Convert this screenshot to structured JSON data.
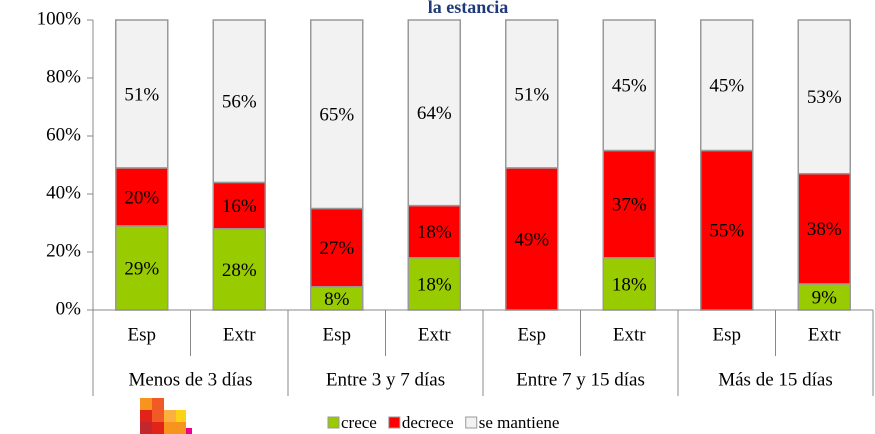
{
  "chart_data": {
    "type": "stacked_bar",
    "title": "la estancia",
    "groups": [
      "Menos de 3 días",
      "Entre 3 y 7 días",
      "Entre 7 y 15 días",
      "Más de 15 días"
    ],
    "categories": [
      "Esp",
      "Extr",
      "Esp",
      "Extr",
      "Esp",
      "Extr",
      "Esp",
      "Extr"
    ],
    "series": [
      {
        "name": "crece",
        "color": "#99cc00",
        "values": [
          29,
          28,
          8,
          18,
          0,
          18,
          0,
          9
        ],
        "value_labels": [
          "29%",
          "28%",
          "8%",
          "18%",
          null,
          "18%",
          null,
          "9%"
        ]
      },
      {
        "name": "decrece",
        "color": "#ff0000",
        "values": [
          20,
          16,
          27,
          18,
          49,
          37,
          55,
          38
        ],
        "value_labels": [
          "20%",
          "16%",
          "27%",
          "18%",
          "49%",
          "37%",
          "55%",
          "38%"
        ]
      },
      {
        "name": "se mantiene",
        "color": "#f2f2f2",
        "values": [
          51,
          56,
          65,
          64,
          51,
          45,
          45,
          53
        ],
        "value_labels": [
          "51%",
          "56%",
          "65%",
          "64%",
          "51%",
          "45%",
          "45%",
          "53%"
        ]
      }
    ],
    "ylim": [
      0,
      100
    ],
    "yticks": [
      {
        "value": 0,
        "label": "0%"
      },
      {
        "value": 20,
        "label": "20%"
      },
      {
        "value": 40,
        "label": "40%"
      },
      {
        "value": 60,
        "label": "60%"
      },
      {
        "value": 80,
        "label": "80%"
      },
      {
        "value": 100,
        "label": "100%"
      }
    ],
    "grid": false,
    "legend": "bottom"
  }
}
